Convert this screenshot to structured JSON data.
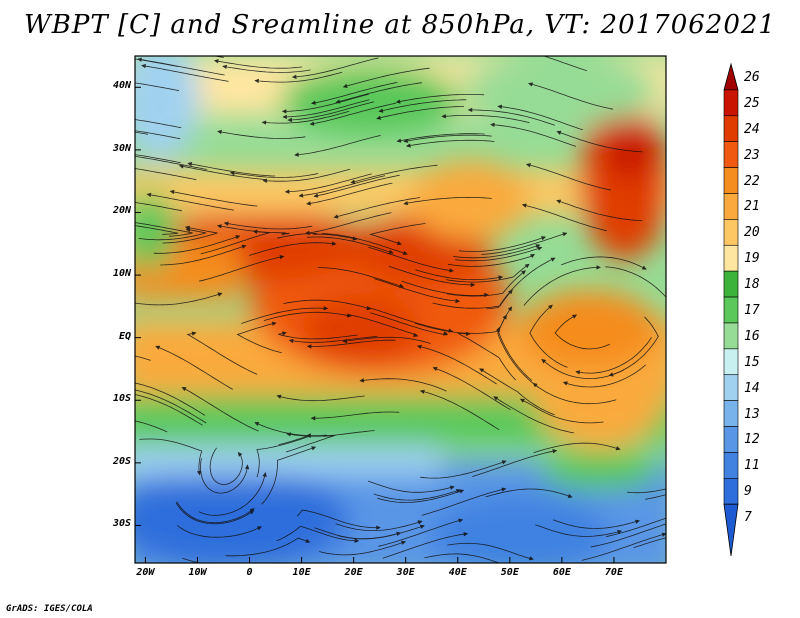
{
  "title": "WBPT [C] and Sreamline at 850hPa, VT: 2017062021",
  "footer": "GrADS: IGES/COLA",
  "map": {
    "lon_range": [
      -22,
      80
    ],
    "lat_range": [
      -36,
      45
    ],
    "lat_ticks": [
      {
        "value": 40,
        "label": "40N"
      },
      {
        "value": 30,
        "label": "30N"
      },
      {
        "value": 20,
        "label": "20N"
      },
      {
        "value": 10,
        "label": "10N"
      },
      {
        "value": 0,
        "label": "EQ"
      },
      {
        "value": -10,
        "label": "10S"
      },
      {
        "value": -20,
        "label": "20S"
      },
      {
        "value": -30,
        "label": "30S"
      }
    ],
    "lon_ticks": [
      {
        "value": -20,
        "label": "20W"
      },
      {
        "value": -10,
        "label": "10W"
      },
      {
        "value": 0,
        "label": "0"
      },
      {
        "value": 10,
        "label": "10E"
      },
      {
        "value": 20,
        "label": "20E"
      },
      {
        "value": 30,
        "label": "30E"
      },
      {
        "value": 40,
        "label": "40E"
      },
      {
        "value": 50,
        "label": "50E"
      },
      {
        "value": 60,
        "label": "60E"
      },
      {
        "value": 70,
        "label": "70E"
      }
    ]
  },
  "colorbar": {
    "levels": [
      {
        "label": "26",
        "color": "#a00000"
      },
      {
        "label": "25",
        "color": "#c81400"
      },
      {
        "label": "24",
        "color": "#e03c00"
      },
      {
        "label": "23",
        "color": "#f05a10"
      },
      {
        "label": "22",
        "color": "#f58c1e"
      },
      {
        "label": "21",
        "color": "#faaa3c"
      },
      {
        "label": "20",
        "color": "#fdc864"
      },
      {
        "label": "19",
        "color": "#ffe6a0"
      },
      {
        "label": "18",
        "color": "#3cb43c"
      },
      {
        "label": "17",
        "color": "#5ac85a"
      },
      {
        "label": "16",
        "color": "#96dc96"
      },
      {
        "label": "15",
        "color": "#c8f0f0"
      },
      {
        "label": "14",
        "color": "#a0d2f0"
      },
      {
        "label": "13",
        "color": "#78b4eb"
      },
      {
        "label": "12",
        "color": "#5a96e6"
      },
      {
        "label": "11",
        "color": "#4182e1"
      },
      {
        "label": "9",
        "color": "#2d6edc"
      },
      {
        "label": "7",
        "color": "#1e5ad2"
      }
    ]
  }
}
